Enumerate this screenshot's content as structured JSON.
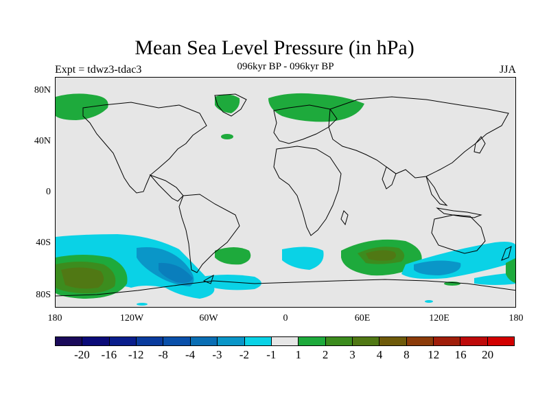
{
  "title": "Mean Sea Level Pressure (in hPa)",
  "subtitle": "096kyr BP - 096kyr BP",
  "left_label": "Expt = tdwz3-tdac3",
  "right_label": "JJA",
  "lat_labels": [
    "80N",
    "40N",
    "0",
    "40S",
    "80S"
  ],
  "lon_labels": [
    "180",
    "120W",
    "60W",
    "0",
    "60E",
    "120E",
    "180"
  ],
  "colorbar": {
    "colors": [
      "#1a0a5a",
      "#0b0b78",
      "#0a1e8c",
      "#0a3c9e",
      "#0a50aa",
      "#0a6eb4",
      "#0a96c8",
      "#0ad2e6",
      "#e6e6e6",
      "#1eaa3c",
      "#3c8c1e",
      "#507814",
      "#6e5a0a",
      "#8c3c0a",
      "#a01e0a",
      "#be0a0a",
      "#d20000"
    ],
    "labels": [
      "-20",
      "-16",
      "-12",
      "-8",
      "-4",
      "-3",
      "-2",
      "-1",
      "1",
      "2",
      "3",
      "4",
      "8",
      "12",
      "16",
      "20"
    ]
  },
  "legend_colors": {
    "ocean_background": "#e6e6e6",
    "light_green": "#1eaa3c",
    "mid_green": "#3c8c1e",
    "olive": "#507814",
    "brown": "#6e5a0a",
    "cyan": "#0ad2e6",
    "light_blue": "#0a96c8",
    "blue": "#0a6eb4"
  }
}
